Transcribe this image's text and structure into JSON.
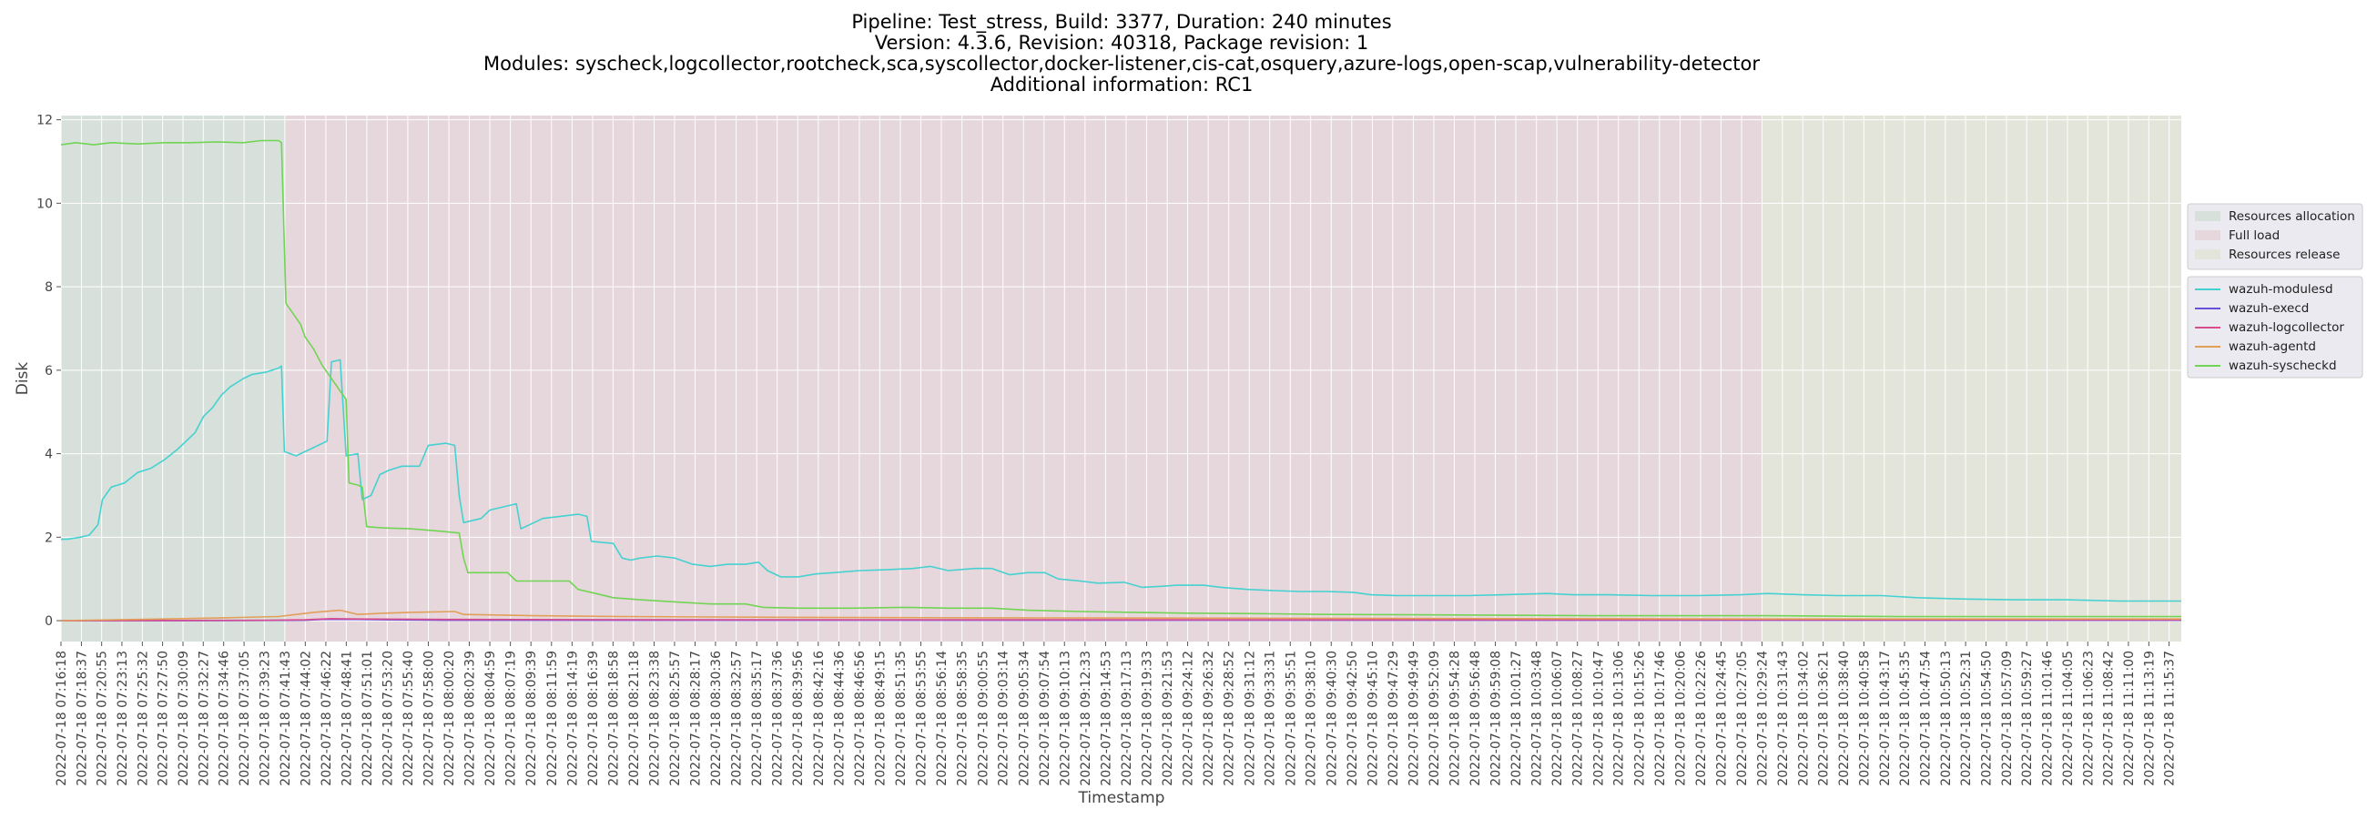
{
  "chart_data": {
    "type": "line",
    "title_lines": [
      "Pipeline: Test_stress, Build: 3377, Duration: 240 minutes",
      "Version: 4.3.6, Revision: 40318, Package revision: 1",
      "Modules: syscheck,logcollector,rootcheck,sca,syscollector,docker-listener,cis-cat,osquery,azure-logs,open-scap,vulnerability-detector",
      "Additional information: RC1"
    ],
    "xlabel": "Timestamp",
    "ylabel": "Disk",
    "ylim": [
      -0.5,
      12.1
    ],
    "yticks": [
      0,
      2,
      4,
      6,
      8,
      10,
      12
    ],
    "grid": true,
    "legend_position": "right",
    "x_date": "2022-07-18",
    "x_start": "07:16:18",
    "x_end": "11:17:00",
    "x_ticks": [
      "2022-07-18 07:16:18",
      "2022-07-18 07:18:37",
      "2022-07-18 07:20:55",
      "2022-07-18 07:23:13",
      "2022-07-18 07:25:32",
      "2022-07-18 07:27:50",
      "2022-07-18 07:30:09",
      "2022-07-18 07:32:27",
      "2022-07-18 07:34:46",
      "2022-07-18 07:37:05",
      "2022-07-18 07:39:23",
      "2022-07-18 07:41:43",
      "2022-07-18 07:44:02",
      "2022-07-18 07:46:22",
      "2022-07-18 07:48:41",
      "2022-07-18 07:51:01",
      "2022-07-18 07:53:20",
      "2022-07-18 07:55:40",
      "2022-07-18 07:58:00",
      "2022-07-18 08:00:20",
      "2022-07-18 08:02:39",
      "2022-07-18 08:04:59",
      "2022-07-18 08:07:19",
      "2022-07-18 08:09:39",
      "2022-07-18 08:11:59",
      "2022-07-18 08:14:19",
      "2022-07-18 08:16:39",
      "2022-07-18 08:18:58",
      "2022-07-18 08:21:18",
      "2022-07-18 08:23:38",
      "2022-07-18 08:25:57",
      "2022-07-18 08:28:17",
      "2022-07-18 08:30:36",
      "2022-07-18 08:32:57",
      "2022-07-18 08:35:17",
      "2022-07-18 08:37:36",
      "2022-07-18 08:39:56",
      "2022-07-18 08:42:16",
      "2022-07-18 08:44:36",
      "2022-07-18 08:46:56",
      "2022-07-18 08:49:15",
      "2022-07-18 08:51:35",
      "2022-07-18 08:53:55",
      "2022-07-18 08:56:14",
      "2022-07-18 08:58:35",
      "2022-07-18 09:00:55",
      "2022-07-18 09:03:14",
      "2022-07-18 09:05:34",
      "2022-07-18 09:07:54",
      "2022-07-18 09:10:13",
      "2022-07-18 09:12:33",
      "2022-07-18 09:14:53",
      "2022-07-18 09:17:13",
      "2022-07-18 09:19:33",
      "2022-07-18 09:21:53",
      "2022-07-18 09:24:12",
      "2022-07-18 09:26:32",
      "2022-07-18 09:28:52",
      "2022-07-18 09:31:12",
      "2022-07-18 09:33:31",
      "2022-07-18 09:35:51",
      "2022-07-18 09:38:10",
      "2022-07-18 09:40:30",
      "2022-07-18 09:42:50",
      "2022-07-18 09:45:10",
      "2022-07-18 09:47:29",
      "2022-07-18 09:49:49",
      "2022-07-18 09:52:09",
      "2022-07-18 09:54:28",
      "2022-07-18 09:56:48",
      "2022-07-18 09:59:08",
      "2022-07-18 10:01:27",
      "2022-07-18 10:03:48",
      "2022-07-18 10:06:07",
      "2022-07-18 10:08:27",
      "2022-07-18 10:10:47",
      "2022-07-18 10:13:06",
      "2022-07-18 10:15:26",
      "2022-07-18 10:17:46",
      "2022-07-18 10:20:06",
      "2022-07-18 10:22:26",
      "2022-07-18 10:24:45",
      "2022-07-18 10:27:05",
      "2022-07-18 10:29:24",
      "2022-07-18 10:31:43",
      "2022-07-18 10:34:02",
      "2022-07-18 10:36:21",
      "2022-07-18 10:38:40",
      "2022-07-18 10:40:58",
      "2022-07-18 10:43:17",
      "2022-07-18 10:45:35",
      "2022-07-18 10:47:54",
      "2022-07-18 10:50:13",
      "2022-07-18 10:52:31",
      "2022-07-18 10:54:50",
      "2022-07-18 10:57:09",
      "2022-07-18 10:59:27",
      "2022-07-18 11:01:46",
      "2022-07-18 11:04:05",
      "2022-07-18 11:06:23",
      "2022-07-18 11:08:42",
      "2022-07-18 11:11:00",
      "2022-07-18 11:13:19",
      "2022-07-18 11:15:37"
    ],
    "phases": [
      {
        "name": "Resources allocation",
        "start": "07:16:18",
        "end": "07:41:43",
        "color": "#d7e0db"
      },
      {
        "name": "Full load",
        "start": "07:41:43",
        "end": "10:29:24",
        "color": "#e5d7db"
      },
      {
        "name": "Resources release",
        "start": "10:29:24",
        "end": "11:17:00",
        "color": "#e4e5da"
      }
    ],
    "series": [
      {
        "name": "wazuh-modulesd",
        "color": "#46d1d1",
        "points": [
          [
            "07:16:18",
            1.95
          ],
          [
            "07:17:00",
            1.95
          ],
          [
            "07:18:30",
            2.0
          ],
          [
            "07:19:30",
            2.05
          ],
          [
            "07:20:30",
            2.3
          ],
          [
            "07:21:00",
            2.9
          ],
          [
            "07:22:00",
            3.2
          ],
          [
            "07:23:30",
            3.3
          ],
          [
            "07:25:00",
            3.55
          ],
          [
            "07:26:30",
            3.65
          ],
          [
            "07:28:00",
            3.85
          ],
          [
            "07:29:30",
            4.1
          ],
          [
            "07:30:30",
            4.3
          ],
          [
            "07:31:30",
            4.5
          ],
          [
            "07:32:30",
            4.9
          ],
          [
            "07:33:30",
            5.1
          ],
          [
            "07:34:30",
            5.4
          ],
          [
            "07:35:30",
            5.6
          ],
          [
            "07:37:00",
            5.8
          ],
          [
            "07:38:00",
            5.9
          ],
          [
            "07:39:30",
            5.95
          ],
          [
            "07:41:00",
            6.05
          ],
          [
            "07:41:20",
            6.1
          ],
          [
            "07:41:40",
            4.05
          ],
          [
            "07:43:00",
            3.95
          ],
          [
            "07:44:30",
            4.1
          ],
          [
            "07:45:30",
            4.2
          ],
          [
            "07:46:30",
            4.3
          ],
          [
            "07:47:00",
            6.2
          ],
          [
            "07:48:00",
            6.25
          ],
          [
            "07:48:40",
            3.95
          ],
          [
            "07:50:00",
            4.0
          ],
          [
            "07:50:30",
            2.9
          ],
          [
            "07:51:30",
            3.0
          ],
          [
            "07:52:30",
            3.5
          ],
          [
            "07:53:30",
            3.6
          ],
          [
            "07:55:00",
            3.7
          ],
          [
            "07:57:00",
            3.7
          ],
          [
            "07:58:00",
            4.2
          ],
          [
            "08:00:00",
            4.25
          ],
          [
            "08:01:00",
            4.2
          ],
          [
            "08:01:30",
            3.0
          ],
          [
            "08:02:00",
            2.35
          ],
          [
            "08:04:00",
            2.45
          ],
          [
            "08:05:00",
            2.65
          ],
          [
            "08:07:00",
            2.75
          ],
          [
            "08:08:00",
            2.8
          ],
          [
            "08:08:30",
            2.2
          ],
          [
            "08:10:00",
            2.35
          ],
          [
            "08:11:00",
            2.45
          ],
          [
            "08:13:00",
            2.5
          ],
          [
            "08:15:00",
            2.55
          ],
          [
            "08:16:00",
            2.5
          ],
          [
            "08:16:30",
            1.9
          ],
          [
            "08:19:00",
            1.85
          ],
          [
            "08:20:00",
            1.5
          ],
          [
            "08:21:00",
            1.45
          ],
          [
            "08:22:00",
            1.5
          ],
          [
            "08:24:00",
            1.55
          ],
          [
            "08:26:00",
            1.5
          ],
          [
            "08:28:00",
            1.35
          ],
          [
            "08:30:00",
            1.3
          ],
          [
            "08:32:00",
            1.35
          ],
          [
            "08:34:00",
            1.35
          ],
          [
            "08:35:30",
            1.4
          ],
          [
            "08:36:30",
            1.2
          ],
          [
            "08:38:00",
            1.05
          ],
          [
            "08:40:00",
            1.05
          ],
          [
            "08:42:00",
            1.12
          ],
          [
            "08:44:00",
            1.15
          ],
          [
            "08:47:00",
            1.2
          ],
          [
            "08:50:00",
            1.22
          ],
          [
            "08:53:00",
            1.25
          ],
          [
            "08:55:00",
            1.3
          ],
          [
            "08:57:00",
            1.2
          ],
          [
            "09:00:00",
            1.25
          ],
          [
            "09:02:00",
            1.25
          ],
          [
            "09:04:00",
            1.1
          ],
          [
            "09:06:00",
            1.15
          ],
          [
            "09:08:00",
            1.15
          ],
          [
            "09:09:30",
            1.0
          ],
          [
            "09:12:00",
            0.95
          ],
          [
            "09:14:00",
            0.9
          ],
          [
            "09:17:00",
            0.92
          ],
          [
            "09:19:00",
            0.8
          ],
          [
            "09:21:00",
            0.82
          ],
          [
            "09:23:00",
            0.85
          ],
          [
            "09:26:00",
            0.85
          ],
          [
            "09:28:00",
            0.8
          ],
          [
            "09:31:00",
            0.75
          ],
          [
            "09:34:00",
            0.72
          ],
          [
            "09:37:00",
            0.7
          ],
          [
            "09:40:00",
            0.7
          ],
          [
            "09:43:00",
            0.68
          ],
          [
            "09:45:00",
            0.62
          ],
          [
            "09:48:00",
            0.6
          ],
          [
            "09:52:00",
            0.6
          ],
          [
            "09:56:00",
            0.6
          ],
          [
            "10:00:00",
            0.62
          ],
          [
            "10:05:00",
            0.65
          ],
          [
            "10:08:00",
            0.62
          ],
          [
            "10:12:00",
            0.62
          ],
          [
            "10:17:00",
            0.6
          ],
          [
            "10:22:00",
            0.6
          ],
          [
            "10:27:00",
            0.62
          ],
          [
            "10:30:00",
            0.65
          ],
          [
            "10:34:00",
            0.62
          ],
          [
            "10:38:00",
            0.6
          ],
          [
            "10:43:00",
            0.6
          ],
          [
            "10:47:00",
            0.55
          ],
          [
            "10:52:00",
            0.52
          ],
          [
            "10:58:00",
            0.5
          ],
          [
            "11:04:00",
            0.5
          ],
          [
            "11:10:00",
            0.47
          ],
          [
            "11:17:00",
            0.47
          ]
        ]
      },
      {
        "name": "wazuh-execd",
        "color": "#6a4fdb",
        "points": [
          [
            "07:16:18",
            0.0
          ],
          [
            "07:30:00",
            0.0
          ],
          [
            "07:44:00",
            0.01
          ],
          [
            "07:46:00",
            0.03
          ],
          [
            "07:50:00",
            0.03
          ],
          [
            "07:53:00",
            0.02
          ],
          [
            "08:00:00",
            0.01
          ],
          [
            "08:30:00",
            0.01
          ],
          [
            "09:00:00",
            0.01
          ],
          [
            "10:00:00",
            0.01
          ],
          [
            "11:17:00",
            0.01
          ]
        ]
      },
      {
        "name": "wazuh-logcollector",
        "color": "#d94d8f",
        "points": [
          [
            "07:16:18",
            0.0
          ],
          [
            "07:40:00",
            0.01
          ],
          [
            "07:44:00",
            0.02
          ],
          [
            "07:47:00",
            0.05
          ],
          [
            "07:50:00",
            0.04
          ],
          [
            "08:00:00",
            0.03
          ],
          [
            "08:30:00",
            0.02
          ],
          [
            "09:00:00",
            0.02
          ],
          [
            "10:00:00",
            0.02
          ],
          [
            "11:17:00",
            0.02
          ]
        ]
      },
      {
        "name": "wazuh-agentd",
        "color": "#e39e5a",
        "points": [
          [
            "07:16:18",
            0.0
          ],
          [
            "07:25:00",
            0.03
          ],
          [
            "07:35:00",
            0.07
          ],
          [
            "07:41:00",
            0.1
          ],
          [
            "07:43:00",
            0.15
          ],
          [
            "07:45:00",
            0.2
          ],
          [
            "07:48:00",
            0.25
          ],
          [
            "07:50:00",
            0.15
          ],
          [
            "07:53:00",
            0.18
          ],
          [
            "07:56:00",
            0.2
          ],
          [
            "08:01:00",
            0.22
          ],
          [
            "08:02:00",
            0.15
          ],
          [
            "08:10:00",
            0.12
          ],
          [
            "08:20:00",
            0.1
          ],
          [
            "08:40:00",
            0.08
          ],
          [
            "09:00:00",
            0.07
          ],
          [
            "09:30:00",
            0.06
          ],
          [
            "10:00:00",
            0.05
          ],
          [
            "10:30:00",
            0.04
          ],
          [
            "11:17:00",
            0.04
          ]
        ]
      },
      {
        "name": "wazuh-syscheckd",
        "color": "#72d454",
        "points": [
          [
            "07:16:18",
            11.4
          ],
          [
            "07:18:00",
            11.45
          ],
          [
            "07:20:00",
            11.4
          ],
          [
            "07:22:00",
            11.45
          ],
          [
            "07:25:00",
            11.42
          ],
          [
            "07:28:00",
            11.45
          ],
          [
            "07:31:00",
            11.45
          ],
          [
            "07:34:00",
            11.47
          ],
          [
            "07:37:00",
            11.45
          ],
          [
            "07:39:00",
            11.5
          ],
          [
            "07:41:00",
            11.5
          ],
          [
            "07:41:20",
            11.45
          ],
          [
            "07:41:50",
            7.6
          ],
          [
            "07:42:30",
            7.4
          ],
          [
            "07:43:30",
            7.1
          ],
          [
            "07:44:00",
            6.8
          ],
          [
            "07:45:00",
            6.5
          ],
          [
            "07:46:00",
            6.1
          ],
          [
            "07:47:00",
            5.8
          ],
          [
            "07:48:00",
            5.5
          ],
          [
            "07:48:40",
            5.3
          ],
          [
            "07:49:00",
            3.3
          ],
          [
            "07:50:00",
            3.25
          ],
          [
            "07:50:30",
            3.2
          ],
          [
            "07:51:00",
            2.25
          ],
          [
            "07:53:00",
            2.22
          ],
          [
            "07:56:00",
            2.2
          ],
          [
            "07:59:00",
            2.15
          ],
          [
            "08:01:30",
            2.1
          ],
          [
            "08:02:00",
            1.5
          ],
          [
            "08:02:30",
            1.15
          ],
          [
            "08:05:00",
            1.15
          ],
          [
            "08:07:00",
            1.15
          ],
          [
            "08:08:00",
            0.95
          ],
          [
            "08:10:00",
            0.95
          ],
          [
            "08:14:00",
            0.95
          ],
          [
            "08:15:00",
            0.75
          ],
          [
            "08:17:00",
            0.65
          ],
          [
            "08:19:00",
            0.55
          ],
          [
            "08:22:00",
            0.5
          ],
          [
            "08:26:00",
            0.45
          ],
          [
            "08:30:00",
            0.4
          ],
          [
            "08:34:00",
            0.4
          ],
          [
            "08:36:00",
            0.32
          ],
          [
            "08:40:00",
            0.3
          ],
          [
            "08:46:00",
            0.3
          ],
          [
            "08:52:00",
            0.32
          ],
          [
            "08:57:00",
            0.3
          ],
          [
            "09:02:00",
            0.3
          ],
          [
            "09:06:00",
            0.25
          ],
          [
            "09:12:00",
            0.22
          ],
          [
            "09:18:00",
            0.2
          ],
          [
            "09:24:00",
            0.18
          ],
          [
            "09:32:00",
            0.17
          ],
          [
            "09:40:00",
            0.15
          ],
          [
            "09:50:00",
            0.14
          ],
          [
            "10:00:00",
            0.13
          ],
          [
            "10:10:00",
            0.12
          ],
          [
            "10:20:00",
            0.12
          ],
          [
            "10:30:00",
            0.12
          ],
          [
            "10:45:00",
            0.1
          ],
          [
            "11:00:00",
            0.1
          ],
          [
            "11:17:00",
            0.1
          ]
        ]
      }
    ]
  }
}
